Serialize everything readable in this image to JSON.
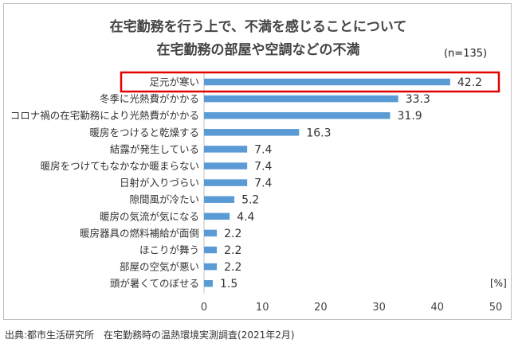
{
  "header": {
    "title_line1": "在宅勤務を行う上で、不満を感じることについて",
    "title_line2": "在宅勤務の部屋や空調などの不満",
    "sample_note": "(n=135)"
  },
  "source": "出典:都市生活研究所　在宅勤務時の温熱環境実測調査(2021年2月)",
  "colors": {
    "bar": "#5b9bd5",
    "highlight": "#e00000",
    "axis": "#bfbfbf"
  },
  "chart_data": {
    "type": "bar",
    "orientation": "horizontal",
    "categories": [
      "足元が寒い",
      "冬季に光熱費がかかる",
      "コロナ禍の在宅勤務により光熱費がかかる",
      "暖房をつけると乾燥する",
      "結露が発生している",
      "暖房をつけてもなかなか暖まらない",
      "日射が入りづらい",
      "隙間風が冷たい",
      "暖房の気流が気になる",
      "暖房器具の燃料補給が面倒",
      "ほこりが舞う",
      "部屋の空気が悪い",
      "頭が暑くてのぼせる"
    ],
    "values": [
      42.2,
      33.3,
      31.9,
      16.3,
      7.4,
      7.4,
      7.4,
      5.2,
      4.4,
      2.2,
      2.2,
      2.2,
      1.5
    ],
    "value_labels": [
      "42.2",
      "33.3",
      "31.9",
      "16.3",
      "7.4",
      "7.4",
      "7.4",
      "5.2",
      "4.4",
      "2.2",
      "2.2",
      "2.2",
      "1.5"
    ],
    "xlim": [
      0,
      50
    ],
    "xticks": [
      "0",
      "10",
      "20",
      "30",
      "40",
      "50"
    ],
    "unit_label": "[%]",
    "highlighted_category": "足元が寒い",
    "grid": false
  }
}
